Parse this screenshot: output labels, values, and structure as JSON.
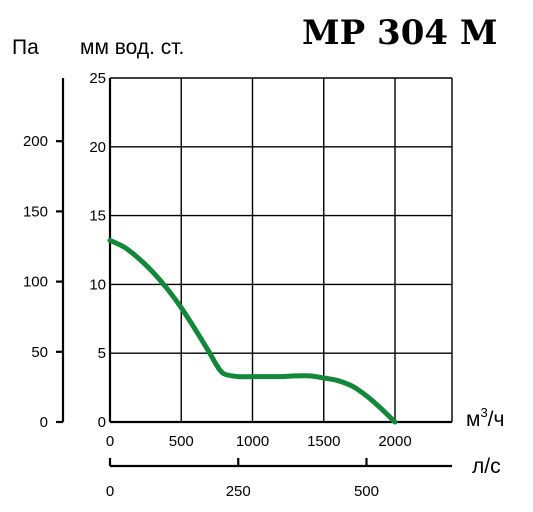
{
  "chart_data": {
    "type": "line",
    "title": "MP 304 M",
    "left_axis_label": "Па",
    "ylabel": "мм вод. ст.",
    "xlabel": "м3/ч",
    "xlabel_parts": [
      "м",
      "3",
      "/ч"
    ],
    "x2label": "л/с",
    "xlim": [
      0,
      2400
    ],
    "ylim": [
      0,
      25
    ],
    "pa_lim": [
      0,
      245
    ],
    "x2lim": [
      0,
      666.7
    ],
    "y_ticks": [
      "25",
      "20",
      "15",
      "10",
      "5",
      "0"
    ],
    "y_tick_values": [
      25,
      20,
      15,
      10,
      5,
      0
    ],
    "pa_ticks": [
      "200",
      "150",
      "100",
      "50",
      "0"
    ],
    "pa_tick_values": [
      200,
      150,
      100,
      50,
      0
    ],
    "x_ticks": [
      "0",
      "500",
      "1000",
      "1500",
      "2000"
    ],
    "x_tick_values": [
      0,
      500,
      1000,
      1500,
      2000
    ],
    "x2_ticks": [
      "0",
      "250",
      "500"
    ],
    "x2_tick_values": [
      0,
      250,
      500
    ],
    "grid": true,
    "series": [
      {
        "color": "#14883a",
        "x": [
          0,
          100,
          200,
          300,
          400,
          500,
          600,
          700,
          750,
          800,
          900,
          1000,
          1100,
          1200,
          1300,
          1400,
          1500,
          1600,
          1700,
          1800,
          1900,
          1950,
          2000
        ],
        "y": [
          13.2,
          12.7,
          11.9,
          10.9,
          9.7,
          8.3,
          6.7,
          5.0,
          4.1,
          3.5,
          3.3,
          3.3,
          3.3,
          3.3,
          3.35,
          3.35,
          3.2,
          3.0,
          2.6,
          1.9,
          1.0,
          0.5,
          0.0
        ]
      }
    ]
  }
}
